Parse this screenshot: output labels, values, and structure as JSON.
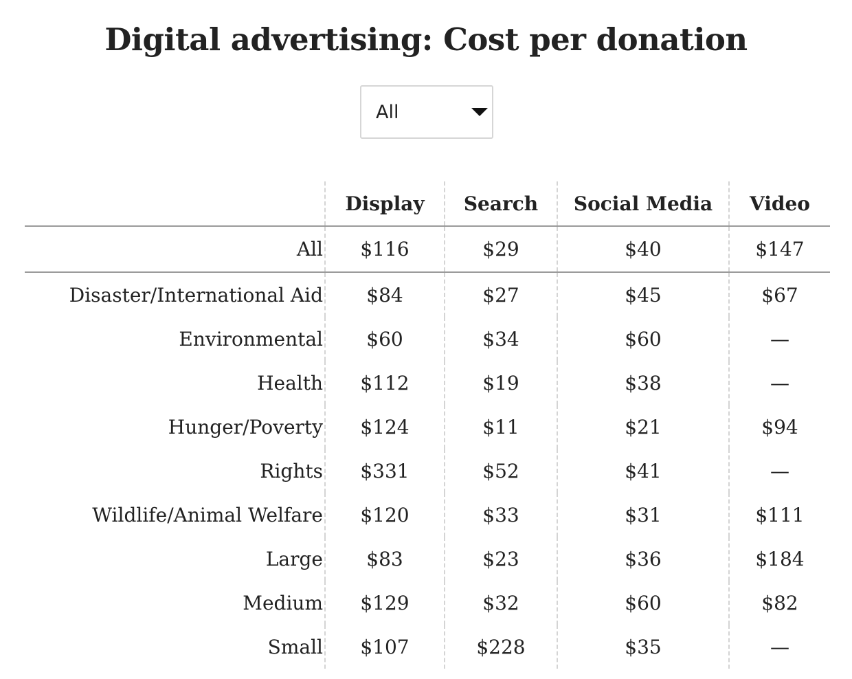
{
  "title": "Digital advertising: Cost per donation",
  "filter": {
    "selected": "All",
    "arrow_icon": "triangle-down-icon"
  },
  "chart_data": {
    "type": "table",
    "title": "Digital advertising: Cost per donation",
    "columns": [
      "Display",
      "Search",
      "Social Media",
      "Video"
    ],
    "summary_row": {
      "label": "All",
      "values": [
        "$116",
        "$29",
        "$40",
        "$147"
      ]
    },
    "rows": [
      {
        "label": "Disaster/International Aid",
        "values": [
          "$84",
          "$27",
          "$45",
          "$67"
        ]
      },
      {
        "label": "Environmental",
        "values": [
          "$60",
          "$34",
          "$60",
          "—"
        ]
      },
      {
        "label": "Health",
        "values": [
          "$112",
          "$19",
          "$38",
          "—"
        ]
      },
      {
        "label": "Hunger/Poverty",
        "values": [
          "$124",
          "$11",
          "$21",
          "$94"
        ]
      },
      {
        "label": "Rights",
        "values": [
          "$331",
          "$52",
          "$41",
          "—"
        ]
      },
      {
        "label": "Wildlife/Animal Welfare",
        "values": [
          "$120",
          "$33",
          "$31",
          "$111"
        ]
      },
      {
        "label": "Large",
        "values": [
          "$83",
          "$23",
          "$36",
          "$184"
        ]
      },
      {
        "label": "Medium",
        "values": [
          "$129",
          "$32",
          "$60",
          "$82"
        ]
      },
      {
        "label": "Small",
        "values": [
          "$107",
          "$228",
          "$35",
          "—"
        ]
      }
    ]
  }
}
